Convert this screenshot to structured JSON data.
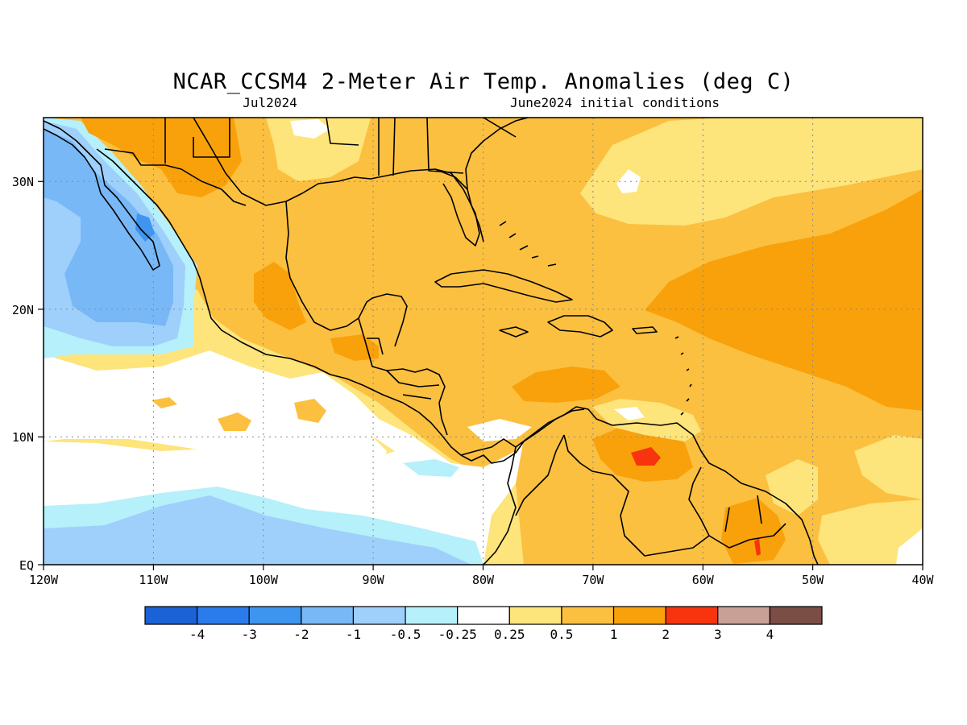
{
  "title": "NCAR_CCSM4 2-Meter Air Temp. Anomalies (deg C)",
  "subtitle_left": "Jul2024",
  "subtitle_right": "June2024 initial conditions",
  "chart_data": {
    "type": "heatmap",
    "title": "NCAR_CCSM4 2-Meter Air Temp. Anomalies (deg C)",
    "valid_month": "Jul2024",
    "initial_conditions": "June2024 initial conditions",
    "units": "deg C",
    "lon_range": [
      -120,
      -40
    ],
    "lat_range": [
      0,
      35
    ],
    "x_ticks": [
      "120W",
      "110W",
      "100W",
      "90W",
      "80W",
      "70W",
      "60W",
      "50W",
      "40W"
    ],
    "y_ticks": [
      "EQ",
      "10N",
      "20N",
      "30N"
    ],
    "grid": "dotted",
    "colorbar": {
      "labels": [
        "-4",
        "-3",
        "-2",
        "-1",
        "-0.5",
        "-0.25",
        "0.25",
        "0.5",
        "1",
        "2",
        "3",
        "4"
      ],
      "colors": [
        "#1a62d6",
        "#2a7cec",
        "#3e95f0",
        "#79b8f6",
        "#9fd0fb",
        "#b6f0fa",
        "#ffffff",
        "#fde47b",
        "#fbc040",
        "#f9a10b",
        "#f8340e",
        "#c8a096",
        "#7a4e45"
      ]
    },
    "regions": [
      {
        "name": "Baja/Pacific coast cold anomaly",
        "level": "-1 to -0.5"
      },
      {
        "name": "Gulf of Mexico / Caribbean",
        "level": "0.5 to 1"
      },
      {
        "name": "Central Atlantic 20-30N",
        "level": "1 to 2"
      },
      {
        "name": "Eastern Pacific near equator",
        "level": "-0.5 to -0.25"
      },
      {
        "name": "Venezuela max",
        "level": "2 to 3"
      }
    ]
  }
}
